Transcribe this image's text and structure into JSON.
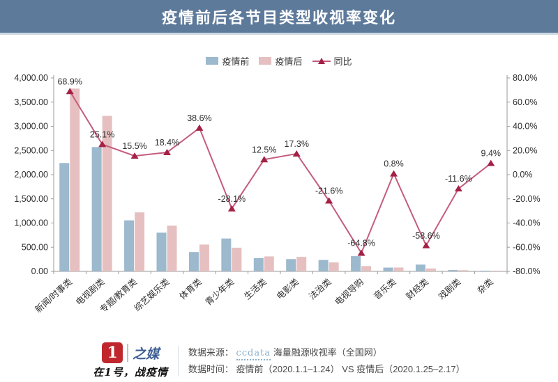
{
  "header": {
    "title": "疫情前后各节目类型收视率变化"
  },
  "legend": {
    "pre_label": "疫情前",
    "post_label": "疫情后",
    "line_label": "同比",
    "pre_color": "#9cb9cd",
    "post_color": "#e6c0c1",
    "line_color": "#c45c7d",
    "marker_color": "#a42045"
  },
  "chart_data": {
    "type": "bar+line combo (grouped bars on left axis, line on right axis)",
    "title": "疫情前后各节目类型收视率变化",
    "categories": [
      "新闻/时事类",
      "电视剧类",
      "专题/教育类",
      "综艺娱乐类",
      "体育类",
      "青少年类",
      "生活类",
      "电影类",
      "法治类",
      "电视导购",
      "音乐类",
      "财经类",
      "戏剧类",
      "杂类"
    ],
    "series": [
      {
        "name": "疫情前",
        "type": "bar",
        "axis": "left",
        "color": "#9cb9cd",
        "values": [
          2240,
          2570,
          1055,
          800,
          400,
          680,
          275,
          255,
          235,
          315,
          78,
          140,
          28,
          12
        ]
      },
      {
        "name": "疫情后",
        "type": "bar",
        "axis": "left",
        "color": "#e6c0c1",
        "values": [
          3780,
          3215,
          1220,
          945,
          555,
          490,
          310,
          300,
          185,
          110,
          80,
          60,
          25,
          13
        ]
      },
      {
        "name": "同比",
        "type": "line",
        "axis": "right",
        "color": "#c45c7d",
        "marker_color": "#a42045",
        "values": [
          68.9,
          25.1,
          15.5,
          18.4,
          38.6,
          -28.1,
          12.5,
          17.3,
          -21.6,
          -64.8,
          0.8,
          -58.6,
          -11.6,
          9.4
        ],
        "labels": [
          "68.9%",
          "25.1%",
          "15.5%",
          "18.4%",
          "38.6%",
          "-28.1%",
          "12.5%",
          "17.3%",
          "-21.6%",
          "-64.8%",
          "0.8%",
          "-58.6%",
          "-11.6%",
          "9.4%"
        ]
      }
    ],
    "left_axis": {
      "min": 0,
      "max": 4000,
      "ticks": [
        "4,000.00",
        "3,500.00",
        "3,000.00",
        "2,500.00",
        "2,000.00",
        "1,500.00",
        "1,000.00",
        "500.00",
        "0.00"
      ]
    },
    "right_axis": {
      "min": -80,
      "max": 80,
      "ticks": [
        "80.0%",
        "60.0%",
        "40.0%",
        "20.0%",
        "0.0%",
        "-20.0%",
        "-40.0%",
        "-60.0%",
        "-80.0%"
      ]
    },
    "grid": false,
    "legend_position": "top-center"
  },
  "footer": {
    "logo_mark": "1",
    "logo_brand": "之媒",
    "logo_slogan": "在1号，战疫情",
    "source_label": "数据来源：",
    "source_brand": "ccdata",
    "source_rest": "海量融源收视率（全国网）",
    "time_label": "数据时间：",
    "time_value": "疫情前（2020.1.1–1.24） VS 疫情后（2020.1.25–2.17）"
  }
}
